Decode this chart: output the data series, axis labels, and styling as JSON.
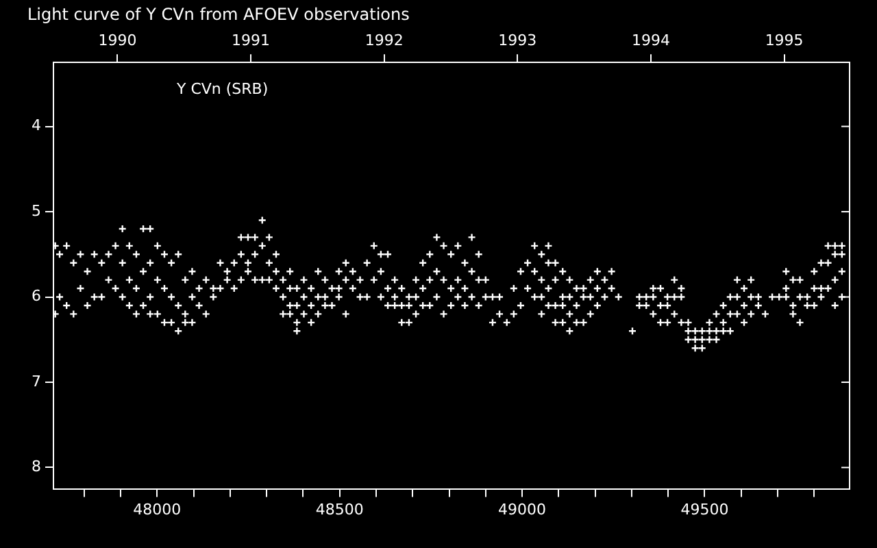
{
  "chart_data": {
    "type": "scatter",
    "title": "Light curve of Y CVn from AFOEV observations",
    "annotations": [
      "Y CVn (SRB)"
    ],
    "series": [
      {
        "color": "#ffffff",
        "x": [
          47721,
          47721,
          47733,
          47733,
          47752,
          47752,
          47771,
          47771,
          47790,
          47790,
          47809,
          47809,
          47828,
          47828,
          47848,
          47848,
          47867,
          47867,
          47886,
          47886,
          47905,
          47905,
          47905,
          47924,
          47924,
          47924,
          47943,
          47943,
          47943,
          47962,
          47962,
          47962,
          47981,
          47981,
          47981,
          47981,
          48001,
          48001,
          48001,
          48020,
          48020,
          48020,
          48039,
          48039,
          48039,
          48058,
          48058,
          48058,
          48077,
          48077,
          48077,
          48096,
          48096,
          48096,
          48115,
          48115,
          48134,
          48134,
          48154,
          48154,
          48173,
          48173,
          48192,
          48192,
          48211,
          48211,
          48230,
          48230,
          48230,
          48249,
          48249,
          48249,
          48268,
          48268,
          48268,
          48288,
          48288,
          48288,
          48307,
          48307,
          48307,
          48326,
          48326,
          48326,
          48345,
          48345,
          48345,
          48364,
          48364,
          48364,
          48364,
          48383,
          48383,
          48383,
          48383,
          48402,
          48402,
          48402,
          48422,
          48422,
          48422,
          48441,
          48441,
          48441,
          48460,
          48460,
          48460,
          48479,
          48479,
          48498,
          48498,
          48498,
          48517,
          48517,
          48517,
          48536,
          48536,
          48556,
          48556,
          48575,
          48575,
          48594,
          48594,
          48613,
          48613,
          48613,
          48632,
          48632,
          48632,
          48651,
          48651,
          48651,
          48670,
          48670,
          48670,
          48690,
          48690,
          48690,
          48709,
          48709,
          48709,
          48728,
          48728,
          48728,
          48747,
          48747,
          48747,
          48766,
          48766,
          48766,
          48785,
          48785,
          48785,
          48805,
          48805,
          48805,
          48824,
          48824,
          48824,
          48843,
          48843,
          48843,
          48862,
          48862,
          48862,
          48881,
          48881,
          48881,
          48900,
          48900,
          48919,
          48919,
          48938,
          48938,
          48958,
          48977,
          48977,
          48996,
          48996,
          49015,
          49015,
          49034,
          49034,
          49034,
          49053,
          49053,
          49053,
          49053,
          49072,
          49072,
          49072,
          49072,
          49091,
          49091,
          49091,
          49091,
          49111,
          49111,
          49111,
          49111,
          49130,
          49130,
          49130,
          49130,
          49149,
          49149,
          49149,
          49168,
          49168,
          49168,
          49187,
          49187,
          49187,
          49206,
          49206,
          49206,
          49226,
          49226,
          49245,
          49245,
          49264,
          49302,
          49321,
          49321,
          49340,
          49340,
          49359,
          49359,
          49359,
          49379,
          49379,
          49379,
          49398,
          49398,
          49398,
          49417,
          49417,
          49417,
          49436,
          49436,
          49436,
          49455,
          49455,
          49455,
          49474,
          49474,
          49474,
          49493,
          49493,
          49493,
          49513,
          49513,
          49513,
          49532,
          49532,
          49532,
          49551,
          49551,
          49551,
          49570,
          49570,
          49570,
          49589,
          49589,
          49589,
          49608,
          49608,
          49608,
          49627,
          49627,
          49627,
          49647,
          49647,
          49666,
          49685,
          49704,
          49723,
          49723,
          49723,
          49742,
          49742,
          49742,
          49761,
          49761,
          49761,
          49781,
          49781,
          49800,
          49800,
          49800,
          49819,
          49819,
          49819,
          49838,
          49838,
          49838,
          49857,
          49857,
          49857,
          49857,
          49876,
          49876,
          49876,
          49876
        ],
        "values": [
          5.4,
          6.2,
          5.5,
          6.0,
          5.4,
          6.1,
          5.6,
          6.2,
          5.5,
          5.9,
          5.7,
          6.1,
          5.5,
          6.0,
          5.6,
          6.0,
          5.5,
          5.8,
          5.4,
          5.9,
          5.2,
          5.6,
          6.0,
          5.4,
          5.8,
          6.1,
          5.5,
          5.9,
          6.2,
          5.2,
          5.7,
          6.1,
          5.2,
          5.6,
          6.0,
          6.2,
          5.4,
          5.8,
          6.2,
          5.5,
          5.9,
          6.3,
          5.6,
          6.0,
          6.3,
          5.5,
          6.1,
          6.4,
          5.8,
          6.2,
          6.3,
          5.7,
          6.0,
          6.3,
          5.9,
          6.1,
          5.8,
          6.2,
          5.9,
          6.0,
          5.6,
          5.9,
          5.7,
          5.8,
          5.6,
          5.9,
          5.3,
          5.5,
          5.8,
          5.3,
          5.6,
          5.7,
          5.3,
          5.5,
          5.8,
          5.1,
          5.4,
          5.8,
          5.3,
          5.6,
          5.8,
          5.5,
          5.7,
          5.9,
          5.8,
          6.0,
          6.2,
          5.7,
          5.9,
          6.1,
          6.2,
          5.9,
          6.1,
          6.3,
          6.4,
          5.8,
          6.0,
          6.2,
          5.9,
          6.1,
          6.3,
          5.7,
          6.0,
          6.2,
          5.8,
          6.0,
          6.1,
          5.9,
          6.1,
          5.7,
          5.9,
          6.0,
          5.6,
          5.8,
          6.2,
          5.7,
          5.9,
          5.8,
          6.0,
          5.6,
          6.0,
          5.4,
          5.8,
          5.5,
          5.7,
          6.0,
          5.5,
          5.9,
          6.1,
          5.8,
          6.0,
          6.1,
          5.9,
          6.1,
          6.3,
          6.0,
          6.1,
          6.3,
          5.8,
          6.0,
          6.2,
          5.6,
          5.9,
          6.1,
          5.5,
          5.8,
          6.1,
          5.3,
          5.7,
          6.0,
          5.4,
          5.8,
          6.2,
          5.5,
          5.9,
          6.1,
          5.4,
          5.8,
          6.0,
          5.6,
          5.9,
          6.1,
          5.3,
          5.7,
          6.0,
          5.5,
          5.8,
          6.1,
          5.8,
          6.0,
          6.0,
          6.3,
          6.0,
          6.2,
          6.3,
          5.9,
          6.2,
          5.7,
          6.1,
          5.6,
          5.9,
          5.4,
          5.7,
          6.0,
          5.5,
          5.8,
          6.0,
          6.2,
          5.4,
          5.6,
          5.9,
          6.1,
          5.6,
          5.8,
          6.1,
          6.3,
          5.7,
          6.0,
          6.1,
          6.3,
          5.8,
          6.0,
          6.2,
          6.4,
          5.9,
          6.1,
          6.3,
          5.9,
          6.0,
          6.3,
          5.8,
          6.0,
          6.2,
          5.7,
          5.9,
          6.1,
          5.8,
          6.0,
          5.7,
          5.9,
          6.0,
          6.4,
          6.0,
          6.1,
          6.0,
          6.1,
          5.9,
          6.0,
          6.2,
          5.9,
          6.1,
          6.3,
          6.0,
          6.1,
          6.3,
          5.8,
          6.0,
          6.2,
          5.9,
          6.0,
          6.3,
          6.3,
          6.4,
          6.5,
          6.4,
          6.5,
          6.6,
          6.4,
          6.5,
          6.6,
          6.3,
          6.4,
          6.5,
          6.2,
          6.4,
          6.5,
          6.1,
          6.3,
          6.4,
          6.0,
          6.2,
          6.4,
          5.8,
          6.0,
          6.2,
          5.9,
          6.1,
          6.3,
          5.8,
          6.0,
          6.2,
          6.0,
          6.1,
          6.2,
          6.0,
          6.0,
          5.7,
          5.9,
          6.0,
          5.8,
          6.1,
          6.2,
          5.8,
          6.0,
          6.3,
          6.0,
          6.1,
          5.7,
          5.9,
          6.1,
          5.6,
          5.9,
          6.0,
          5.4,
          5.6,
          5.9,
          5.4,
          5.5,
          5.8,
          6.1,
          5.4,
          5.5,
          5.7,
          6.0
        ]
      }
    ],
    "marker": "cross",
    "xlim": [
      47716,
      49897
    ],
    "xticks": [
      {
        "value": 47800,
        "label": null
      },
      {
        "value": 47900,
        "label": null
      },
      48000,
      {
        "value": 48100,
        "label": null
      },
      {
        "value": 48200,
        "label": null
      },
      {
        "value": 48300,
        "label": null
      },
      {
        "value": 48400,
        "label": null
      },
      48500,
      {
        "value": 48600,
        "label": null
      },
      {
        "value": 48700,
        "label": null
      },
      {
        "value": 48800,
        "label": null
      },
      {
        "value": 48900,
        "label": null
      },
      49000,
      {
        "value": 49100,
        "label": null
      },
      {
        "value": 49200,
        "label": null
      },
      {
        "value": 49300,
        "label": null
      },
      {
        "value": 49400,
        "label": null
      },
      49500,
      {
        "value": 49600,
        "label": null
      },
      {
        "value": 49700,
        "label": null
      },
      {
        "value": 49800,
        "label": null
      }
    ],
    "x2lim": [
      1989.52,
      1995.49
    ],
    "x2ticks": [
      1990,
      1991,
      1992,
      1993,
      1994,
      1995
    ],
    "ylim": [
      8.25,
      3.25
    ],
    "yticks": [
      4,
      5,
      6,
      7,
      8
    ],
    "legend": false
  }
}
